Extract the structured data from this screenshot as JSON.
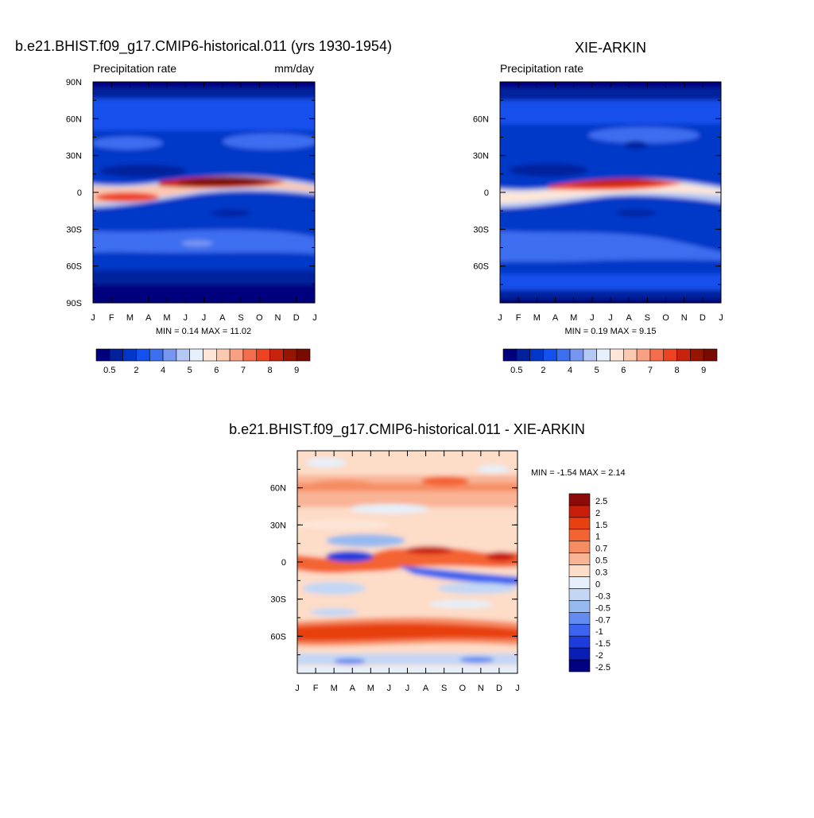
{
  "chart_data": [
    {
      "type": "heatmap",
      "title": "b.e21.BHIST.f09_g17.CMIP6-historical.011 (yrs 1930-1954)",
      "subtitle_left": "Precipitation rate",
      "subtitle_right": "mm/day",
      "x_ticks": [
        "J",
        "F",
        "M",
        "A",
        "M",
        "J",
        "J",
        "A",
        "S",
        "O",
        "N",
        "D",
        "J"
      ],
      "y_ticks": [
        "90N",
        "60N",
        "30N",
        "0",
        "30S",
        "60S",
        "90S"
      ],
      "ylim": [
        -90,
        90
      ],
      "stats": "MIN =   0.14 MAX =  11.02",
      "min": 0.14,
      "max": 11.02,
      "levels": [
        "0.5",
        "2",
        "4",
        "5",
        "6",
        "7",
        "8",
        "9"
      ],
      "colormap": [
        "#00007f",
        "#00209c",
        "#0037c8",
        "#1450ec",
        "#3c6ef0",
        "#7896f0",
        "#b4c8f5",
        "#e6f0fa",
        "#fde6d8",
        "#fcc8b0",
        "#f9a082",
        "#f56e4c",
        "#ee4321",
        "#c8230f",
        "#961400",
        "#780a00"
      ]
    },
    {
      "type": "heatmap",
      "title": "XIE-ARKIN",
      "subtitle_left": "Precipitation rate",
      "x_ticks": [
        "J",
        "F",
        "M",
        "A",
        "M",
        "J",
        "J",
        "A",
        "S",
        "O",
        "N",
        "D",
        "J"
      ],
      "y_ticks": [
        "60N",
        "30N",
        "0",
        "30S",
        "60S"
      ],
      "stats": "MIN =   0.19 MAX =   9.15",
      "min": 0.19,
      "max": 9.15,
      "levels": [
        "0.5",
        "2",
        "4",
        "5",
        "6",
        "7",
        "8",
        "9"
      ]
    },
    {
      "type": "heatmap",
      "title": "b.e21.BHIST.f09_g17.CMIP6-historical.011 - XIE-ARKIN",
      "x_ticks": [
        "J",
        "F",
        "M",
        "A",
        "M",
        "J",
        "J",
        "A",
        "S",
        "O",
        "N",
        "D",
        "J"
      ],
      "y_ticks": [
        "60N",
        "30N",
        "0",
        "30S",
        "60S"
      ],
      "stats": "MIN =  -1.54 MAX =   2.14",
      "min": -1.54,
      "max": 2.14,
      "levels": [
        "2.5",
        "2",
        "1.5",
        "1",
        "0.7",
        "0.5",
        "0.3",
        "0",
        "-0.3",
        "-0.5",
        "-0.7",
        "-1",
        "-1.5",
        "-2",
        "-2.5"
      ],
      "colormap": [
        "#8b0a0a",
        "#c81e0a",
        "#e8400f",
        "#f46432",
        "#f68c62",
        "#f9b496",
        "#fddcc8",
        "#e6f0fa",
        "#c3d7f5",
        "#96b9f0",
        "#648cf0",
        "#3c64f0",
        "#1e3cdc",
        "#0a1eb4",
        "#000080"
      ]
    }
  ]
}
